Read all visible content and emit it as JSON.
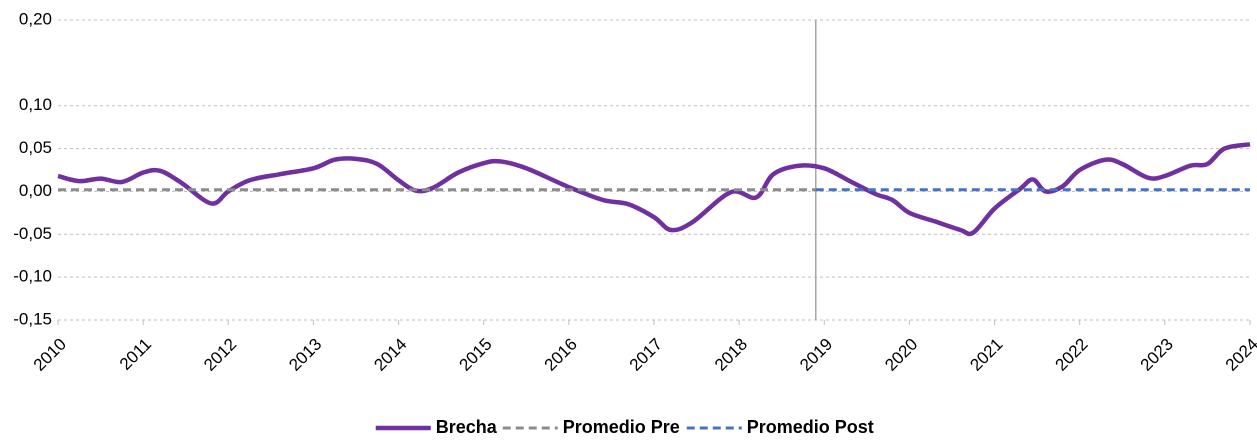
{
  "chart_data": {
    "type": "line",
    "xlim": [
      2010,
      2024
    ],
    "xticks": [
      2010,
      2011,
      2012,
      2013,
      2014,
      2015,
      2016,
      2017,
      2018,
      2019,
      2020,
      2021,
      2022,
      2023,
      2024
    ],
    "ylim": [
      -0.15,
      0.2
    ],
    "yticks": [
      {
        "value": 0.2,
        "label": "0,20"
      },
      {
        "value": 0.1,
        "label": "0,10"
      },
      {
        "value": 0.05,
        "label": "0,05"
      },
      {
        "value": 0,
        "label": "0,00"
      },
      {
        "value": -0.05,
        "label": "-0,05"
      },
      {
        "value": -0.1,
        "label": "-0,10"
      },
      {
        "value": -0.15,
        "label": "-0,15"
      }
    ],
    "grid": true,
    "divider_x": 2018.9,
    "legend": "bottom",
    "series": [
      {
        "name": "Brecha",
        "color": "#7030a0",
        "dash": false,
        "x": [
          2010,
          2010.25,
          2010.5,
          2010.75,
          2011,
          2011.2,
          2011.45,
          2011.8,
          2012,
          2012.25,
          2012.6,
          2013,
          2013.25,
          2013.5,
          2013.75,
          2014,
          2014.2,
          2014.4,
          2014.7,
          2015,
          2015.2,
          2015.5,
          2016,
          2016.4,
          2016.7,
          2017,
          2017.2,
          2017.45,
          2017.9,
          2018.2,
          2018.4,
          2018.7,
          2019,
          2019.3,
          2019.6,
          2019.8,
          2020,
          2020.3,
          2020.6,
          2020.75,
          2021,
          2021.3,
          2021.45,
          2021.6,
          2021.8,
          2022,
          2022.3,
          2022.5,
          2022.8,
          2023,
          2023.3,
          2023.5,
          2023.7,
          2024
        ],
        "values": [
          0.018,
          0.012,
          0.015,
          0.011,
          0.022,
          0.024,
          0.01,
          -0.014,
          0.0,
          0.013,
          0.02,
          0.027,
          0.037,
          0.038,
          0.032,
          0.013,
          0.001,
          0.004,
          0.022,
          0.033,
          0.035,
          0.027,
          0.005,
          -0.01,
          -0.015,
          -0.03,
          -0.045,
          -0.036,
          -0.001,
          -0.007,
          0.02,
          0.03,
          0.027,
          0.012,
          -0.003,
          -0.01,
          -0.025,
          -0.035,
          -0.045,
          -0.048,
          -0.02,
          0.003,
          0.014,
          0.0,
          0.006,
          0.025,
          0.037,
          0.032,
          0.016,
          0.018,
          0.03,
          0.032,
          0.05,
          0.055
        ]
      },
      {
        "name": "Promedio Pre",
        "color": "#8c8c8c",
        "dash": true,
        "x": [
          2010,
          2018.9
        ],
        "values": [
          0.002,
          0.002
        ]
      },
      {
        "name": "Promedio Post",
        "color": "#4472c4",
        "dash": true,
        "x": [
          2018.9,
          2024
        ],
        "values": [
          0.002,
          0.002
        ]
      }
    ]
  }
}
